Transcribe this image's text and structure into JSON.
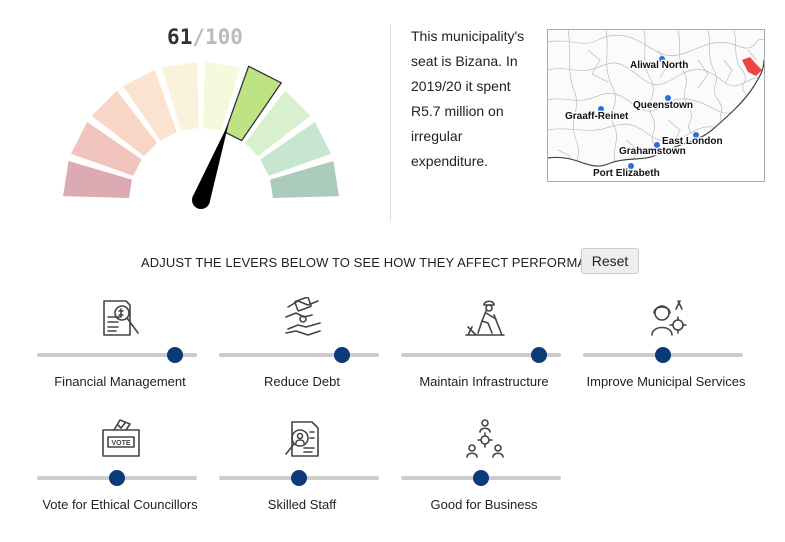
{
  "gauge": {
    "score": "61",
    "separator": "/",
    "max": "100",
    "score_fraction": 0.61,
    "segment_colors": [
      "#dcaab2",
      "#f0c3bd",
      "#f8d5c4",
      "#fbe3cf",
      "#fbf2db",
      "#f7f9dc",
      "#bde384",
      "#d9f0ce",
      "#c6e6cf",
      "#abccbb"
    ],
    "highlight_segment": 6,
    "needle_color": "#000000"
  },
  "description": "This municipality's seat is Bizana. In 2019/20 it spent R5.7 million on irregular expenditure.",
  "map": {
    "highlight_color": "#ee4444",
    "dot_color": "#2a6fd6",
    "cities": [
      "Aliwal North",
      "Queenstown",
      "Graaff-Reinet",
      "East London",
      "Grahamstown",
      "Port Elizabeth"
    ]
  },
  "prompt": "ADJUST THE LEVERS BELOW TO SEE HOW THEY AFFECT PERFORMANCE",
  "reset_label": "Reset",
  "levers": [
    {
      "label": "Financial Management",
      "icon": "financial-report-icon",
      "value": 0.86
    },
    {
      "label": "Reduce Debt",
      "icon": "debt-handshake-icon",
      "value": 0.77
    },
    {
      "label": "Maintain Infrastructure",
      "icon": "construction-worker-icon",
      "value": 0.86
    },
    {
      "label": "Improve Municipal Services",
      "icon": "service-support-icon",
      "value": 0.5
    },
    {
      "label": "Vote for Ethical Councillors",
      "icon": "ballot-box-icon",
      "value": 0.5
    },
    {
      "label": "Skilled Staff",
      "icon": "resume-icon",
      "value": 0.5
    },
    {
      "label": "Good for Business",
      "icon": "business-network-icon",
      "value": 0.5
    }
  ]
}
